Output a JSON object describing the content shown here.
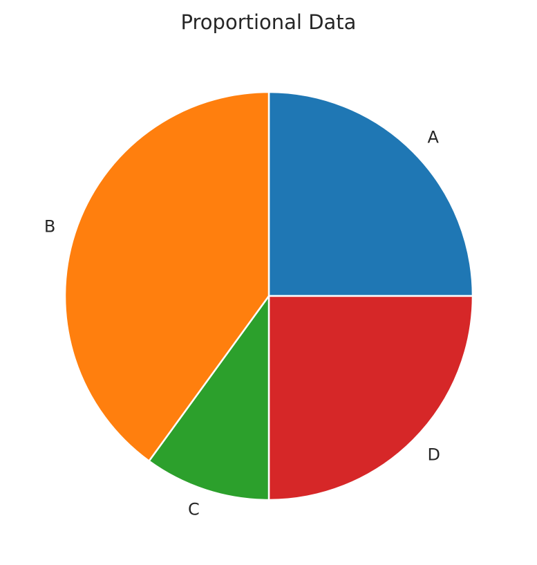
{
  "chart_data": {
    "type": "pie",
    "title": "Proportional Data",
    "start_angle_deg": 90,
    "direction": "clockwise",
    "slices": [
      {
        "label": "A",
        "value": 25,
        "color": "#1f77b4"
      },
      {
        "label": "D",
        "value": 25,
        "color": "#d62728"
      },
      {
        "label": "C",
        "value": 10,
        "color": "#2ca02c"
      },
      {
        "label": "B",
        "value": 40,
        "color": "#ff7f0e"
      }
    ]
  }
}
